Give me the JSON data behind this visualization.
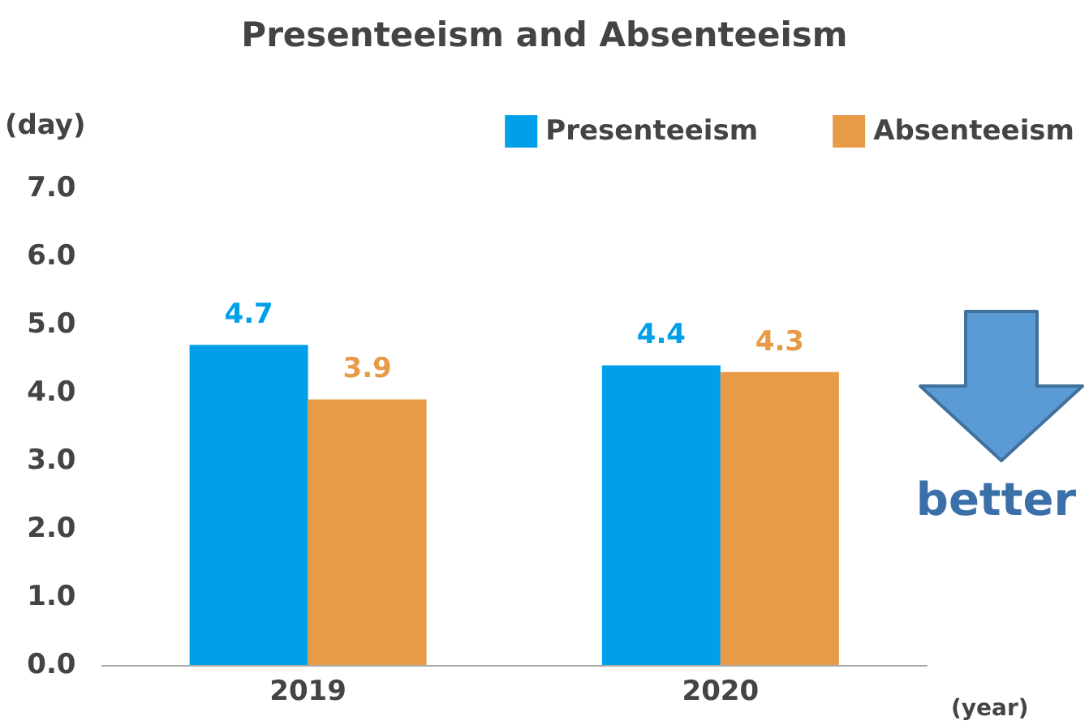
{
  "chart_data": {
    "type": "bar",
    "title": "Presenteeism and Absenteeism",
    "ylabel": "(day)",
    "xlabel": "(year)",
    "categories": [
      "2019",
      "2020"
    ],
    "series": [
      {
        "name": "Presenteeism",
        "color": "#00a0e9",
        "values": [
          4.7,
          4.4
        ]
      },
      {
        "name": "Absenteeism",
        "color": "#e89b47",
        "values": [
          3.9,
          4.3
        ]
      }
    ],
    "ylim": [
      0,
      7
    ],
    "yticks": [
      {
        "value": 0,
        "label": "0.0"
      },
      {
        "value": 1,
        "label": "1.0"
      },
      {
        "value": 2,
        "label": "2.0"
      },
      {
        "value": 3,
        "label": "3.0"
      },
      {
        "value": 4,
        "label": "4.0"
      },
      {
        "value": 5,
        "label": "5.0"
      },
      {
        "value": 6,
        "label": "6.0"
      },
      {
        "value": 7,
        "label": "7.0"
      }
    ],
    "data_labels": true,
    "legend": "top right",
    "grid": false,
    "annotations": [
      "better"
    ]
  }
}
